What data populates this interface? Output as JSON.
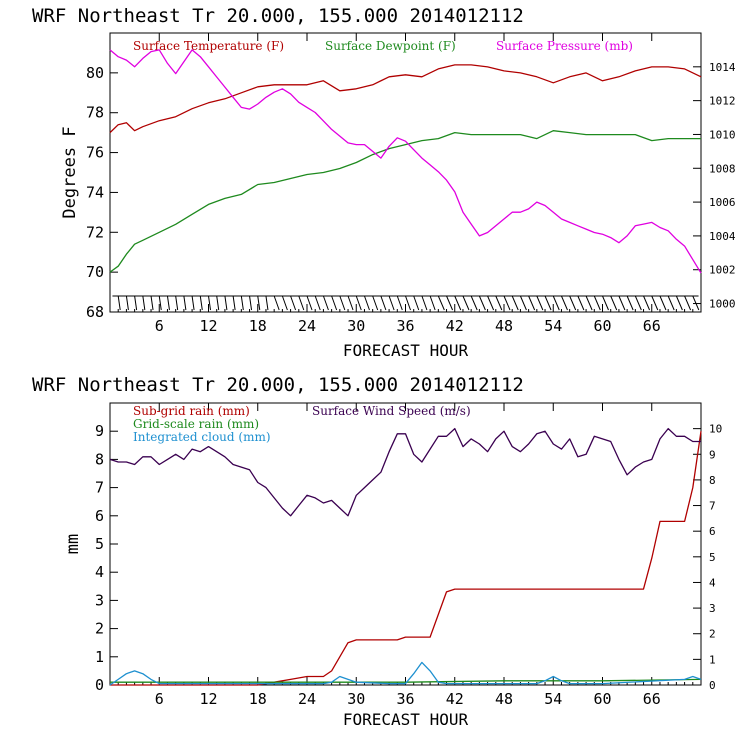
{
  "chart_data": [
    {
      "type": "line",
      "title": "WRF  Northeast Tr  20.000, 155.000  2014012112",
      "xlabel": "FORECAST HOUR",
      "ylabel": "Degrees F",
      "xlim": [
        0,
        72
      ],
      "ylim": [
        68,
        82
      ],
      "y2lim": [
        999.5,
        1016
      ],
      "x_ticks": [
        6,
        12,
        18,
        24,
        30,
        36,
        42,
        48,
        54,
        60,
        66
      ],
      "y_ticks": [
        68,
        70,
        72,
        74,
        76,
        78,
        80
      ],
      "y2_ticks": [
        1000,
        1002,
        1004,
        1006,
        1008,
        1010,
        1012,
        1014
      ],
      "legend": [
        "Surface Temperature (F)",
        "Surface Dewpoint (F)",
        "Surface Pressure (mb)"
      ],
      "series": [
        {
          "name": "Surface Temperature (F)",
          "color": "#b00000",
          "axis": "left",
          "x": [
            0,
            1,
            2,
            3,
            4,
            6,
            8,
            10,
            12,
            14,
            16,
            18,
            20,
            22,
            24,
            26,
            28,
            30,
            32,
            34,
            36,
            38,
            40,
            42,
            44,
            46,
            48,
            50,
            52,
            54,
            56,
            58,
            60,
            62,
            64,
            66,
            68,
            70,
            72
          ],
          "y": [
            77.0,
            77.4,
            77.5,
            77.1,
            77.3,
            77.6,
            77.8,
            78.2,
            78.5,
            78.7,
            79.0,
            79.3,
            79.4,
            79.4,
            79.4,
            79.6,
            79.1,
            79.2,
            79.4,
            79.8,
            79.9,
            79.8,
            80.2,
            80.4,
            80.4,
            80.3,
            80.1,
            80.0,
            79.8,
            79.5,
            79.8,
            80.0,
            79.6,
            79.8,
            80.1,
            80.3,
            80.3,
            80.2,
            79.8
          ]
        },
        {
          "name": "Surface Dewpoint (F)",
          "color": "#1e8a1e",
          "axis": "left",
          "x": [
            0,
            1,
            2,
            3,
            4,
            6,
            8,
            10,
            12,
            14,
            16,
            18,
            20,
            22,
            24,
            26,
            28,
            30,
            32,
            34,
            36,
            38,
            40,
            42,
            44,
            46,
            48,
            50,
            52,
            54,
            56,
            58,
            60,
            62,
            64,
            66,
            68,
            70,
            72
          ],
          "y": [
            70.0,
            70.3,
            70.9,
            71.4,
            71.6,
            72.0,
            72.4,
            72.9,
            73.4,
            73.7,
            73.9,
            74.4,
            74.5,
            74.7,
            74.9,
            75.0,
            75.2,
            75.5,
            75.9,
            76.2,
            76.4,
            76.6,
            76.7,
            77.0,
            76.9,
            76.9,
            76.9,
            76.9,
            76.7,
            77.1,
            77.0,
            76.9,
            76.9,
            76.9,
            76.9,
            76.6,
            76.7,
            76.7,
            76.7
          ]
        },
        {
          "name": "Surface Pressure (mb)",
          "color": "#e000e0",
          "axis": "right",
          "x": [
            0,
            1,
            2,
            3,
            4,
            5,
            6,
            7,
            8,
            9,
            10,
            11,
            12,
            13,
            14,
            15,
            16,
            17,
            18,
            19,
            20,
            21,
            22,
            23,
            24,
            25,
            26,
            27,
            28,
            29,
            30,
            31,
            32,
            33,
            34,
            35,
            36,
            37,
            38,
            39,
            40,
            41,
            42,
            43,
            44,
            45,
            46,
            47,
            48,
            49,
            50,
            51,
            52,
            53,
            54,
            55,
            56,
            57,
            58,
            59,
            60,
            61,
            62,
            63,
            64,
            65,
            66,
            67,
            68,
            69,
            70,
            71,
            72
          ],
          "y": [
            1015.0,
            1014.6,
            1014.4,
            1014.0,
            1014.5,
            1014.9,
            1015.0,
            1014.2,
            1013.6,
            1014.3,
            1015.0,
            1014.6,
            1014.0,
            1013.4,
            1012.8,
            1012.2,
            1011.6,
            1011.5,
            1011.8,
            1012.2,
            1012.5,
            1012.7,
            1012.4,
            1011.9,
            1011.6,
            1011.3,
            1010.8,
            1010.3,
            1009.9,
            1009.5,
            1009.4,
            1009.4,
            1009.0,
            1008.6,
            1009.3,
            1009.8,
            1009.6,
            1009.1,
            1008.6,
            1008.2,
            1007.8,
            1007.3,
            1006.6,
            1005.4,
            1004.7,
            1004.0,
            1004.2,
            1004.6,
            1005.0,
            1005.4,
            1005.4,
            1005.6,
            1006.0,
            1005.8,
            1005.4,
            1005.0,
            1004.8,
            1004.6,
            1004.4,
            1004.2,
            1004.1,
            1003.9,
            1003.6,
            1004.0,
            1004.6,
            1004.7,
            1004.8,
            1004.5,
            1004.3,
            1003.8,
            1003.4,
            1002.6,
            1001.8
          ]
        }
      ],
      "wind_barbs": "Surface wind barbs along bottom of panel"
    },
    {
      "type": "line",
      "title": "WRF  Northeast Tr  20.000, 155.000  2014012112",
      "xlabel": "FORECAST HOUR",
      "ylabel": "mm",
      "xlim": [
        0,
        72
      ],
      "ylim": [
        0,
        10
      ],
      "y2lim": [
        0,
        11
      ],
      "x_ticks": [
        6,
        12,
        18,
        24,
        30,
        36,
        42,
        48,
        54,
        60,
        66
      ],
      "y_ticks": [
        0,
        1,
        2,
        3,
        4,
        5,
        6,
        7,
        8,
        9
      ],
      "y2_ticks": [
        0,
        1,
        2,
        3,
        4,
        5,
        6,
        7,
        8,
        9,
        10
      ],
      "legend": [
        "Sub-grid rain (mm)",
        "Grid-scale rain (mm)",
        "Integrated cloud (mm)",
        "Surface Wind Speed (m/s)"
      ],
      "series": [
        {
          "name": "Sub-grid rain (mm)",
          "color": "#b00000",
          "axis": "left",
          "x": [
            0,
            18,
            20,
            22,
            24,
            26,
            27,
            28,
            29,
            30,
            31,
            32,
            33,
            34,
            35,
            36,
            37,
            38,
            39,
            40,
            41,
            42,
            44,
            46,
            48,
            50,
            52,
            54,
            56,
            58,
            60,
            62,
            64,
            65,
            66,
            67,
            68,
            69,
            70,
            71,
            72
          ],
          "y": [
            0,
            0,
            0.1,
            0.2,
            0.3,
            0.3,
            0.5,
            1.0,
            1.5,
            1.6,
            1.6,
            1.6,
            1.6,
            1.6,
            1.6,
            1.7,
            1.7,
            1.7,
            1.7,
            2.5,
            3.3,
            3.4,
            3.4,
            3.4,
            3.4,
            3.4,
            3.4,
            3.4,
            3.4,
            3.4,
            3.4,
            3.4,
            3.4,
            3.4,
            4.5,
            5.8,
            5.8,
            5.8,
            5.8,
            7.0,
            9.0
          ]
        },
        {
          "name": "Grid-scale rain (mm)",
          "color": "#1e8a1e",
          "axis": "left",
          "x": [
            0,
            24,
            36,
            48,
            60,
            72
          ],
          "y": [
            0.1,
            0.1,
            0.1,
            0.15,
            0.15,
            0.2
          ]
        },
        {
          "name": "Integrated cloud (mm)",
          "color": "#1e90d0",
          "axis": "left",
          "x": [
            0,
            1,
            2,
            3,
            4,
            5,
            6,
            8,
            10,
            20,
            26,
            27,
            28,
            30,
            34,
            36,
            37,
            38,
            39,
            40,
            41,
            42,
            44,
            52,
            53,
            54,
            55,
            56,
            60,
            70,
            71,
            72
          ],
          "y": [
            0,
            0.2,
            0.4,
            0.5,
            0.4,
            0.2,
            0.05,
            0.05,
            0.05,
            0.05,
            0.05,
            0.1,
            0.3,
            0.1,
            0.05,
            0.05,
            0.4,
            0.8,
            0.5,
            0.1,
            0.05,
            0.05,
            0.05,
            0.05,
            0.15,
            0.3,
            0.15,
            0.05,
            0.05,
            0.2,
            0.3,
            0.2
          ]
        },
        {
          "name": "Surface Wind Speed (m/s)",
          "color": "#3a0050",
          "axis": "right",
          "x": [
            0,
            1,
            2,
            3,
            4,
            5,
            6,
            7,
            8,
            9,
            10,
            11,
            12,
            13,
            14,
            15,
            16,
            17,
            18,
            19,
            20,
            21,
            22,
            23,
            24,
            25,
            26,
            27,
            28,
            29,
            30,
            31,
            32,
            33,
            34,
            35,
            36,
            37,
            38,
            39,
            40,
            41,
            42,
            43,
            44,
            45,
            46,
            47,
            48,
            49,
            50,
            51,
            52,
            53,
            54,
            55,
            56,
            57,
            58,
            59,
            60,
            61,
            62,
            63,
            64,
            65,
            66,
            67,
            68,
            69,
            70,
            71,
            72
          ],
          "y": [
            8.8,
            8.7,
            8.7,
            8.6,
            8.9,
            8.9,
            8.6,
            8.8,
            9.0,
            8.8,
            9.2,
            9.1,
            9.3,
            9.1,
            8.9,
            8.6,
            8.5,
            8.4,
            7.9,
            7.7,
            7.3,
            6.9,
            6.6,
            7.0,
            7.4,
            7.3,
            7.1,
            7.2,
            6.9,
            6.6,
            7.4,
            7.7,
            8.0,
            8.3,
            9.1,
            9.8,
            9.8,
            9.0,
            8.7,
            9.2,
            9.7,
            9.7,
            10.0,
            9.3,
            9.6,
            9.4,
            9.1,
            9.6,
            9.9,
            9.3,
            9.1,
            9.4,
            9.8,
            9.9,
            9.4,
            9.2,
            9.6,
            8.9,
            9.0,
            9.7,
            9.6,
            9.5,
            8.8,
            8.2,
            8.5,
            8.7,
            8.8,
            9.6,
            10.0,
            9.7,
            9.7,
            9.5,
            9.5
          ]
        }
      ]
    }
  ]
}
